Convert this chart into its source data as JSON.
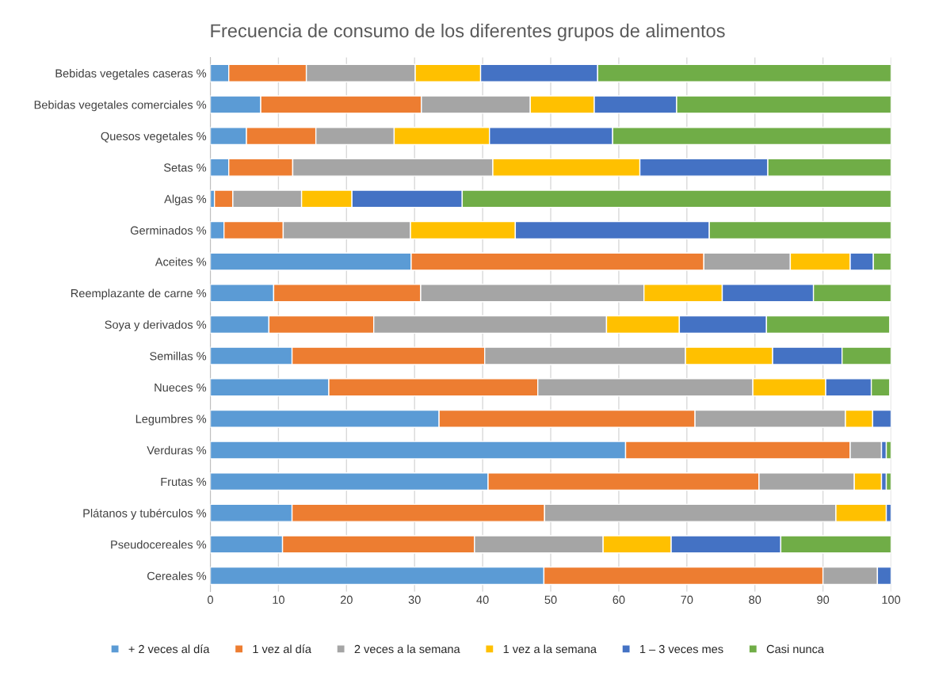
{
  "chart_data": {
    "type": "bar",
    "orientation": "horizontal",
    "stacked": true,
    "title": "Frecuencia de consumo de los diferentes grupos de alimentos",
    "categories": [
      "Bebidas vegetales caseras %",
      "Bebidas vegetales comerciales %",
      "Quesos vegetales %",
      "Setas %",
      "Algas %",
      "Germinados %",
      "Aceites %",
      "Reemplazante de carne %",
      "Soya y derivados %",
      "Semillas %",
      "Nueces %",
      "Legumbres %",
      "Verduras %",
      "Frutas %",
      "Plátanos y tubérculos %",
      "Pseudocereales %",
      "Cereales %"
    ],
    "series": [
      {
        "name": "+ 2 veces al día",
        "color": "#5b9bd5",
        "values": [
          2.7,
          7.4,
          5.3,
          2.7,
          0.6,
          2.0,
          29.5,
          9.3,
          8.6,
          12.0,
          17.4,
          33.6,
          61.0,
          40.8,
          12.0,
          10.6,
          49.0
        ]
      },
      {
        "name": "1 vez al día",
        "color": "#ed7d31",
        "values": [
          11.4,
          23.6,
          10.2,
          9.4,
          2.7,
          8.7,
          43.0,
          21.6,
          15.4,
          28.3,
          30.7,
          37.6,
          33.0,
          39.8,
          37.1,
          28.2,
          41.0
        ]
      },
      {
        "name": "2 veces a la semana",
        "color": "#a5a5a5",
        "values": [
          16.0,
          16.0,
          11.5,
          29.4,
          10.1,
          18.7,
          12.7,
          32.8,
          34.2,
          29.5,
          31.6,
          22.1,
          4.6,
          14.0,
          42.8,
          18.9,
          8.0
        ]
      },
      {
        "name": "1 vez a la semana",
        "color": "#ffc000",
        "values": [
          9.6,
          9.4,
          14.0,
          21.6,
          7.4,
          15.4,
          8.8,
          11.5,
          10.7,
          12.8,
          10.7,
          4.0,
          null,
          4.0,
          7.4,
          10.0,
          null
        ]
      },
      {
        "name": "1 – 3 veces mes",
        "color": "#4472c4",
        "values": [
          17.2,
          12.1,
          18.1,
          18.8,
          16.2,
          28.5,
          3.4,
          13.4,
          12.8,
          10.2,
          6.7,
          2.7,
          0.7,
          0.7,
          0.7,
          16.1,
          2.0
        ]
      },
      {
        "name": "Casi nunca",
        "color": "#70ad47",
        "values": [
          43.1,
          31.5,
          40.9,
          18.1,
          63.0,
          26.7,
          2.6,
          11.4,
          18.1,
          7.2,
          2.7,
          null,
          0.7,
          0.7,
          null,
          16.2,
          null
        ]
      }
    ],
    "xlim": [
      0,
      100
    ],
    "xticks": [
      0,
      10,
      20,
      30,
      40,
      50,
      60,
      70,
      80,
      90,
      100
    ],
    "grid": "x",
    "legend": "bottom"
  }
}
